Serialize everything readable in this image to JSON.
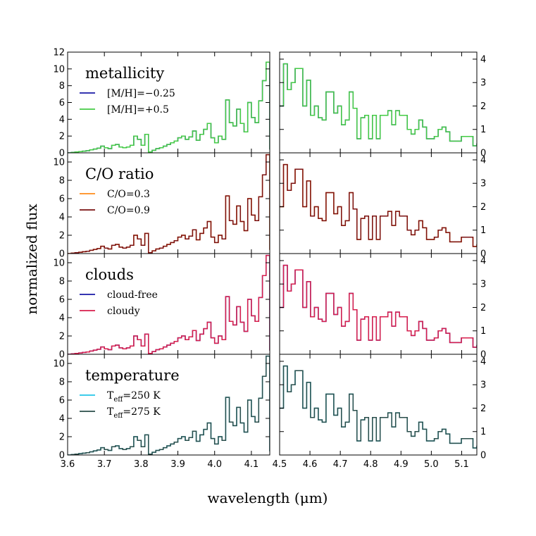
{
  "chart_data": {
    "type": "line",
    "xlabel": "wavelength (μm)",
    "ylabel": "normalized flux",
    "left_xlim": [
      3.6,
      4.15
    ],
    "right_xlim": [
      4.5,
      5.15
    ],
    "left_ylims": [
      [
        0,
        12
      ],
      [
        0,
        11
      ],
      [
        0,
        11
      ],
      [
        0,
        11
      ]
    ],
    "right_ylims": [
      [
        0,
        4.3
      ],
      [
        0,
        4.3
      ],
      [
        0,
        4.3
      ],
      [
        0,
        4.3
      ]
    ],
    "left_xticks": [
      "3.6",
      "3.7",
      "3.8",
      "3.9",
      "4.0",
      "4.1"
    ],
    "right_xticks": [
      "4.5",
      "4.6",
      "4.7",
      "4.8",
      "4.9",
      "5.0",
      "5.1"
    ],
    "left_yticks": [
      [
        "0",
        "2",
        "4",
        "6",
        "8",
        "10",
        "12"
      ],
      [
        "0",
        "2",
        "4",
        "6",
        "8",
        "10"
      ],
      [
        "0",
        "2",
        "4",
        "6",
        "8",
        "10"
      ],
      [
        "0",
        "2",
        "4",
        "6",
        "8",
        "10"
      ]
    ],
    "right_yticks": [
      "0",
      "1",
      "2",
      "3",
      "4"
    ],
    "panels": [
      {
        "title": "metallicity",
        "series": [
          {
            "name": "[M/H]=−0.25",
            "color": "#1a1aa6",
            "left": [
              0.0,
              0.05,
              0.1,
              0.15,
              0.2,
              0.25,
              0.35,
              0.45,
              0.55,
              0.8,
              0.6,
              0.5,
              0.9,
              1.0,
              0.7,
              0.6,
              0.7,
              0.9,
              2.0,
              1.6,
              0.9,
              2.2,
              0.1,
              0.3,
              0.5,
              0.6,
              0.8,
              1.0,
              1.2,
              1.4,
              1.8,
              2.0,
              1.6,
              1.9,
              2.6,
              1.5,
              2.2,
              2.8,
              3.5,
              1.8,
              1.2,
              2.0,
              1.6,
              6.3,
              3.6,
              3.2,
              5.2,
              3.5,
              2.5,
              6.0,
              4.2,
              3.6,
              6.2,
              8.6,
              10.8
            ],
            "right": [
              2.0,
              3.8,
              2.7,
              3.0,
              3.6,
              3.6,
              2.0,
              3.1,
              1.6,
              2.0,
              1.5,
              1.4,
              2.6,
              2.6,
              1.7,
              2.0,
              1.2,
              1.4,
              2.6,
              1.9,
              0.6,
              1.5,
              1.6,
              0.6,
              1.6,
              0.6,
              1.6,
              1.6,
              1.8,
              1.2,
              1.8,
              1.6,
              1.6,
              1.0,
              0.8,
              1.0,
              1.4,
              1.1,
              0.6,
              0.6,
              0.7,
              1.0,
              1.1,
              0.9,
              0.5,
              0.5,
              0.5,
              0.7,
              0.7,
              0.7,
              0.3
            ],
            "tail": 0.4
          },
          {
            "name": "[M/H]=+0.5",
            "color": "#44cc44",
            "left": [
              0.0,
              0.05,
              0.1,
              0.15,
              0.2,
              0.25,
              0.35,
              0.45,
              0.55,
              0.8,
              0.6,
              0.5,
              0.9,
              1.0,
              0.7,
              0.6,
              0.7,
              0.9,
              2.0,
              1.6,
              0.9,
              2.2,
              0.1,
              0.3,
              0.5,
              0.6,
              0.8,
              1.0,
              1.2,
              1.4,
              1.8,
              2.0,
              1.6,
              1.9,
              2.6,
              1.5,
              2.2,
              2.8,
              3.5,
              1.8,
              1.2,
              2.0,
              1.6,
              6.3,
              3.6,
              3.2,
              5.2,
              3.5,
              2.5,
              6.0,
              4.2,
              3.6,
              6.2,
              8.6,
              10.8
            ],
            "right": [
              2.0,
              3.8,
              2.7,
              3.0,
              3.6,
              3.6,
              2.0,
              3.1,
              1.6,
              2.0,
              1.5,
              1.4,
              2.6,
              2.6,
              1.7,
              2.0,
              1.2,
              1.4,
              2.6,
              1.9,
              0.6,
              1.5,
              1.6,
              0.6,
              1.6,
              0.6,
              1.6,
              1.6,
              1.8,
              1.2,
              1.8,
              1.6,
              1.6,
              1.0,
              0.8,
              1.0,
              1.4,
              1.1,
              0.6,
              0.6,
              0.7,
              1.0,
              1.1,
              0.9,
              0.5,
              0.5,
              0.5,
              0.7,
              0.7,
              0.7,
              0.3
            ],
            "tail": 0.4
          }
        ]
      },
      {
        "title": "C/O ratio",
        "series": [
          {
            "name": "C/O=0.3",
            "color": "#ff8c1a",
            "left": [
              0.0,
              0.05,
              0.1,
              0.15,
              0.2,
              0.25,
              0.35,
              0.45,
              0.55,
              0.8,
              0.6,
              0.5,
              0.9,
              1.0,
              0.7,
              0.6,
              0.7,
              0.9,
              2.0,
              1.6,
              0.9,
              2.2,
              0.1,
              0.3,
              0.5,
              0.6,
              0.8,
              1.0,
              1.2,
              1.4,
              1.8,
              2.0,
              1.6,
              1.9,
              2.6,
              1.5,
              2.2,
              2.8,
              3.5,
              1.8,
              1.2,
              2.0,
              1.6,
              6.3,
              3.6,
              3.2,
              5.2,
              3.5,
              2.5,
              6.0,
              4.2,
              3.6,
              6.2,
              8.6,
              10.8
            ],
            "right": [
              2.0,
              3.8,
              2.7,
              3.0,
              3.6,
              3.6,
              2.0,
              3.1,
              1.6,
              2.0,
              1.5,
              1.4,
              2.6,
              2.6,
              1.7,
              2.0,
              1.2,
              1.4,
              2.6,
              1.9,
              0.6,
              1.5,
              1.6,
              0.6,
              1.6,
              0.6,
              1.6,
              1.6,
              1.8,
              1.2,
              1.8,
              1.6,
              1.6,
              1.0,
              0.8,
              1.0,
              1.4,
              1.1,
              0.6,
              0.6,
              0.7,
              1.0,
              1.1,
              0.9,
              0.5,
              0.5,
              0.5,
              0.7,
              0.7,
              0.7,
              0.3
            ],
            "tail": 0.4
          },
          {
            "name": "C/O=0.9",
            "color": "#7a1010",
            "left": [
              0.0,
              0.05,
              0.1,
              0.15,
              0.2,
              0.25,
              0.35,
              0.45,
              0.55,
              0.8,
              0.6,
              0.5,
              0.9,
              1.0,
              0.7,
              0.6,
              0.7,
              0.9,
              2.0,
              1.6,
              0.9,
              2.2,
              0.1,
              0.3,
              0.5,
              0.6,
              0.8,
              1.0,
              1.2,
              1.4,
              1.8,
              2.0,
              1.6,
              1.9,
              2.6,
              1.5,
              2.2,
              2.8,
              3.5,
              1.8,
              1.2,
              2.0,
              1.6,
              6.3,
              3.6,
              3.2,
              5.2,
              3.5,
              2.5,
              6.0,
              4.2,
              3.6,
              6.2,
              8.6,
              10.8
            ],
            "right": [
              2.0,
              3.8,
              2.7,
              3.0,
              3.6,
              3.6,
              2.0,
              3.1,
              1.6,
              2.0,
              1.5,
              1.4,
              2.6,
              2.6,
              1.7,
              2.0,
              1.2,
              1.4,
              2.6,
              1.9,
              0.6,
              1.5,
              1.6,
              0.6,
              1.6,
              0.6,
              1.6,
              1.6,
              1.8,
              1.2,
              1.8,
              1.6,
              1.6,
              1.0,
              0.8,
              1.0,
              1.4,
              1.1,
              0.6,
              0.6,
              0.7,
              1.0,
              1.1,
              0.9,
              0.5,
              0.5,
              0.5,
              0.7,
              0.7,
              0.7,
              0.3
            ],
            "tail": 0.4
          }
        ]
      },
      {
        "title": "clouds",
        "series": [
          {
            "name": "cloud-free",
            "color": "#1a1aa6",
            "left": [
              0.0,
              0.05,
              0.1,
              0.15,
              0.2,
              0.25,
              0.35,
              0.45,
              0.55,
              0.8,
              0.6,
              0.5,
              0.9,
              1.0,
              0.7,
              0.6,
              0.7,
              0.9,
              2.0,
              1.6,
              0.9,
              2.2,
              0.1,
              0.3,
              0.5,
              0.6,
              0.8,
              1.0,
              1.2,
              1.4,
              1.8,
              2.0,
              1.6,
              1.9,
              2.6,
              1.5,
              2.2,
              2.8,
              3.5,
              1.8,
              1.2,
              2.0,
              1.6,
              6.3,
              3.6,
              3.2,
              5.2,
              3.5,
              2.5,
              6.0,
              4.2,
              3.6,
              6.2,
              8.6,
              10.8
            ],
            "right": [
              2.0,
              3.8,
              2.7,
              3.0,
              3.6,
              3.6,
              2.0,
              3.1,
              1.6,
              2.0,
              1.5,
              1.4,
              2.6,
              2.6,
              1.7,
              2.0,
              1.2,
              1.4,
              2.6,
              1.9,
              0.6,
              1.5,
              1.6,
              0.6,
              1.6,
              0.6,
              1.6,
              1.6,
              1.8,
              1.2,
              1.8,
              1.6,
              1.6,
              1.0,
              0.8,
              1.0,
              1.4,
              1.1,
              0.6,
              0.6,
              0.7,
              1.0,
              1.1,
              0.9,
              0.5,
              0.5,
              0.5,
              0.7,
              0.7,
              0.7,
              0.3
            ],
            "tail": 0.4
          },
          {
            "name": "cloudy",
            "color": "#d81e4c",
            "left": [
              0.0,
              0.05,
              0.1,
              0.15,
              0.2,
              0.25,
              0.35,
              0.45,
              0.55,
              0.8,
              0.6,
              0.5,
              0.9,
              1.0,
              0.7,
              0.6,
              0.7,
              0.9,
              2.0,
              1.6,
              0.9,
              2.2,
              0.1,
              0.3,
              0.5,
              0.6,
              0.8,
              1.0,
              1.2,
              1.4,
              1.8,
              2.0,
              1.6,
              1.9,
              2.6,
              1.5,
              2.2,
              2.8,
              3.5,
              1.8,
              1.2,
              2.0,
              1.6,
              6.3,
              3.6,
              3.2,
              5.2,
              3.5,
              2.5,
              6.0,
              4.2,
              3.6,
              6.2,
              8.6,
              10.8
            ],
            "right": [
              2.0,
              3.8,
              2.7,
              3.0,
              3.6,
              3.6,
              2.0,
              3.1,
              1.6,
              2.0,
              1.5,
              1.4,
              2.6,
              2.6,
              1.7,
              2.0,
              1.2,
              1.4,
              2.6,
              1.9,
              0.6,
              1.5,
              1.6,
              0.6,
              1.6,
              0.6,
              1.6,
              1.6,
              1.8,
              1.2,
              1.8,
              1.6,
              1.6,
              1.0,
              0.8,
              1.0,
              1.4,
              1.1,
              0.6,
              0.6,
              0.7,
              1.0,
              1.1,
              0.9,
              0.5,
              0.5,
              0.5,
              0.7,
              0.7,
              0.7,
              0.3
            ],
            "tail": 0.4
          }
        ]
      },
      {
        "title": "temperature",
        "series": [
          {
            "name": "T_eff=250 K",
            "legend_base": "T",
            "legend_sub": "eff",
            "legend_tail": "=250 K",
            "color": "#22c4e8",
            "left": [
              0.0,
              0.05,
              0.1,
              0.15,
              0.2,
              0.25,
              0.35,
              0.45,
              0.55,
              0.8,
              0.6,
              0.5,
              0.9,
              1.0,
              0.7,
              0.6,
              0.7,
              0.9,
              2.0,
              1.6,
              0.9,
              2.2,
              0.1,
              0.3,
              0.5,
              0.6,
              0.8,
              1.0,
              1.2,
              1.4,
              1.8,
              2.0,
              1.6,
              1.9,
              2.6,
              1.5,
              2.2,
              2.8,
              3.5,
              1.8,
              1.2,
              2.0,
              1.6,
              6.3,
              3.6,
              3.2,
              5.2,
              3.5,
              2.5,
              6.0,
              4.2,
              3.6,
              6.2,
              8.6,
              10.8
            ],
            "right": [
              2.0,
              3.8,
              2.7,
              3.0,
              3.6,
              3.6,
              2.0,
              3.1,
              1.6,
              2.0,
              1.5,
              1.4,
              2.6,
              2.6,
              1.7,
              2.0,
              1.2,
              1.4,
              2.6,
              1.9,
              0.6,
              1.5,
              1.6,
              0.6,
              1.6,
              0.6,
              1.6,
              1.6,
              1.8,
              1.2,
              1.8,
              1.6,
              1.6,
              1.0,
              0.8,
              1.0,
              1.4,
              1.1,
              0.6,
              0.6,
              0.7,
              1.0,
              1.1,
              0.9,
              0.5,
              0.5,
              0.5,
              0.7,
              0.7,
              0.7,
              0.3
            ],
            "tail": 0.4
          },
          {
            "name": "T_eff=275 K",
            "legend_base": "T",
            "legend_sub": "eff",
            "legend_tail": "=275 K",
            "color": "#2a4d4a",
            "left": [
              0.0,
              0.05,
              0.1,
              0.15,
              0.2,
              0.25,
              0.35,
              0.45,
              0.55,
              0.8,
              0.6,
              0.5,
              0.9,
              1.0,
              0.7,
              0.6,
              0.7,
              0.9,
              2.0,
              1.6,
              0.9,
              2.2,
              0.1,
              0.3,
              0.5,
              0.6,
              0.8,
              1.0,
              1.2,
              1.4,
              1.8,
              2.0,
              1.6,
              1.9,
              2.6,
              1.5,
              2.2,
              2.8,
              3.5,
              1.8,
              1.2,
              2.0,
              1.6,
              6.3,
              3.6,
              3.2,
              5.2,
              3.5,
              2.5,
              6.0,
              4.2,
              3.6,
              6.2,
              8.6,
              10.8
            ],
            "right": [
              2.0,
              3.8,
              2.7,
              3.0,
              3.6,
              3.6,
              2.0,
              3.1,
              1.6,
              2.0,
              1.5,
              1.4,
              2.6,
              2.6,
              1.7,
              2.0,
              1.2,
              1.4,
              2.6,
              1.9,
              0.6,
              1.5,
              1.6,
              0.6,
              1.6,
              0.6,
              1.6,
              1.6,
              1.8,
              1.2,
              1.8,
              1.6,
              1.6,
              1.0,
              0.8,
              1.0,
              1.4,
              1.1,
              0.6,
              0.6,
              0.7,
              1.0,
              1.1,
              0.9,
              0.5,
              0.5,
              0.5,
              0.7,
              0.7,
              0.7,
              0.3
            ],
            "tail": 0.4
          }
        ]
      }
    ]
  }
}
